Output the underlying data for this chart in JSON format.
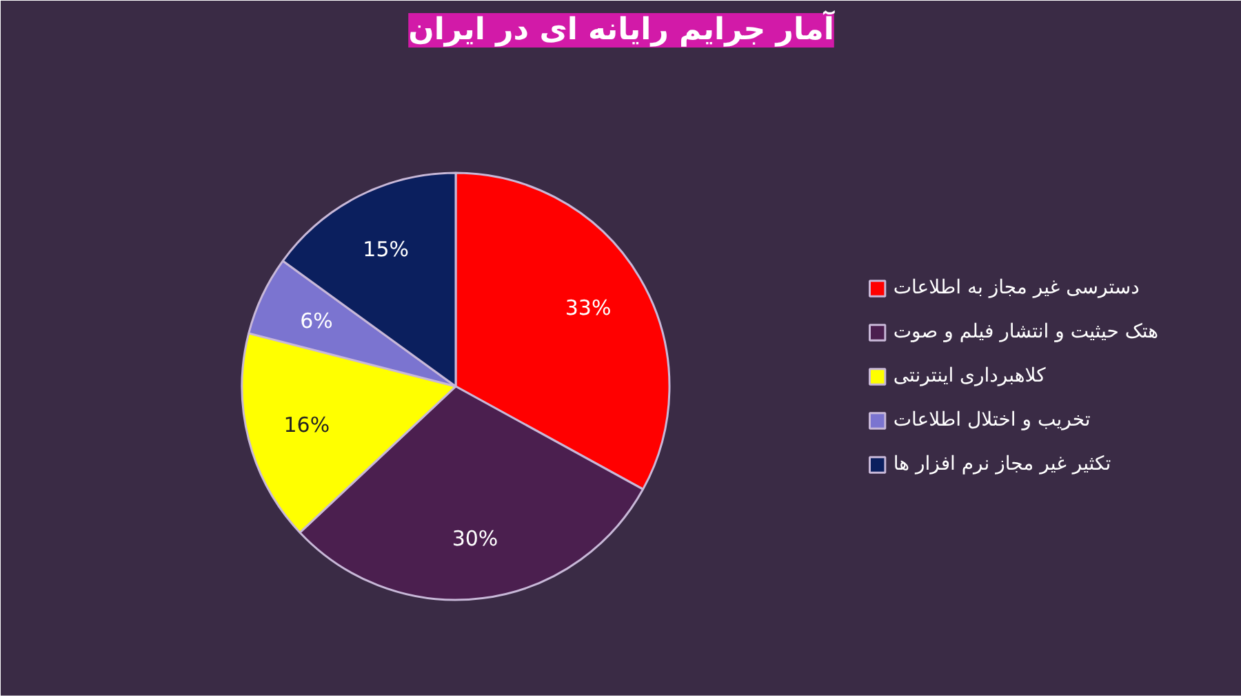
{
  "chart_data": {
    "type": "pie",
    "title": "آمار جرایم رایانه ای در ایران",
    "categories": [
      "دسترسی غیر مجاز به اطلاعات",
      "هتک حیثیت و انتشار فیلم و صوت",
      "کلاهبرداری اینترنتی",
      "تخریب و اختلال اطلاعات",
      "تکثیر غیر مجاز نرم افزار ها"
    ],
    "values": [
      33,
      30,
      16,
      6,
      15
    ],
    "colors": [
      "#ff0000",
      "#4b1f4f",
      "#ffff00",
      "#7b74d0",
      "#0b1f5e"
    ],
    "value_labels": [
      "33%",
      "30%",
      "16%",
      "6%",
      "15%"
    ],
    "legend": "right"
  }
}
